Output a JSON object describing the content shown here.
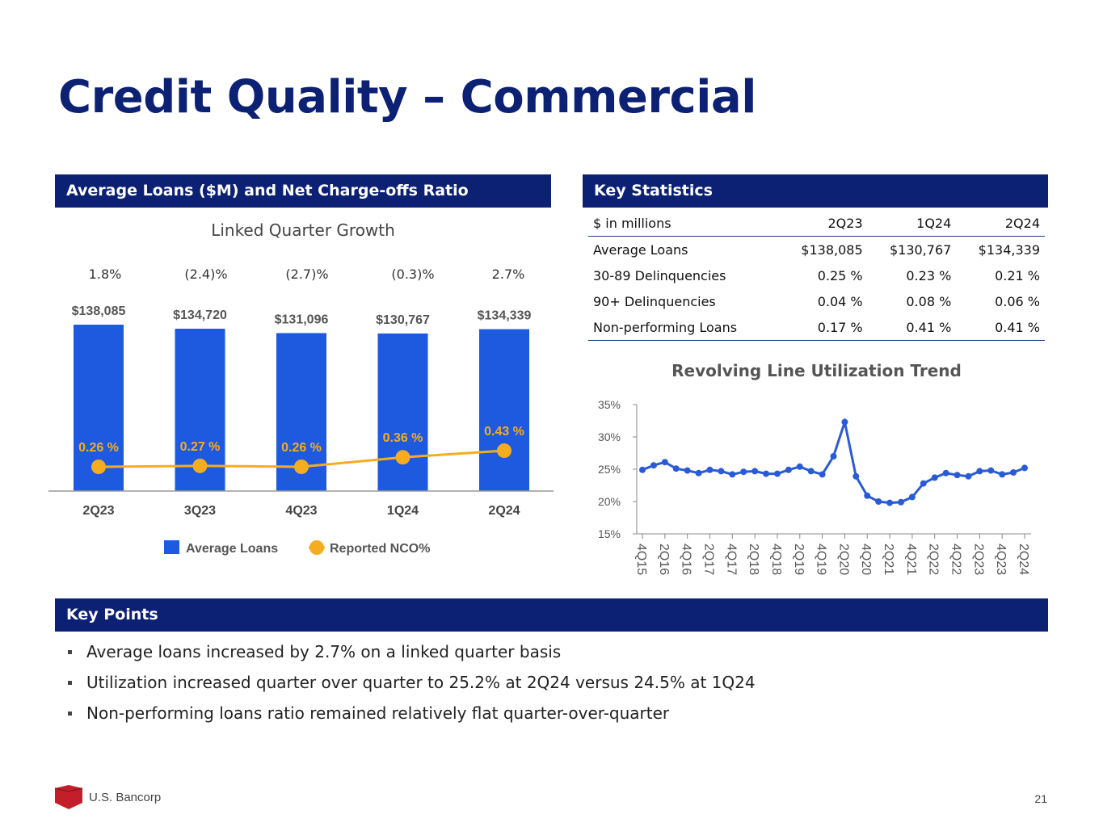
{
  "title": "Credit Quality – Commercial",
  "sections": {
    "loans_header": "Average Loans ($M) and Net Charge-offs Ratio",
    "stats_header": "Key Statistics",
    "points_header": "Key Points"
  },
  "loans_chart": {
    "subtitle": "Linked Quarter Growth",
    "growth": [
      "1.8%",
      "(2.4)%",
      "(2.7)%",
      "(0.3)%",
      "2.7%"
    ],
    "legend": {
      "bars": "Average Loans",
      "line": "Reported NCO%"
    },
    "colors": {
      "bar": "#1e5adf",
      "line": "#f5ad1f"
    }
  },
  "chart_data": [
    {
      "type": "bar",
      "title": "Average Loans ($M) and Net Charge-offs Ratio",
      "categories": [
        "2Q23",
        "3Q23",
        "4Q23",
        "1Q24",
        "2Q24"
      ],
      "series": [
        {
          "name": "Average Loans",
          "values": [
            138085,
            134720,
            131096,
            130767,
            134339
          ],
          "labels": [
            "$138,085",
            "$134,720",
            "$131,096",
            "$130,767",
            "$134,339"
          ]
        },
        {
          "name": "Reported NCO%",
          "type": "line",
          "values": [
            0.26,
            0.27,
            0.26,
            0.36,
            0.43
          ],
          "labels": [
            "0.26 %",
            "0.27 %",
            "0.26 %",
            "0.36 %",
            "0.43 %"
          ]
        }
      ]
    },
    {
      "type": "line",
      "title": "Revolving Line Utilization Trend",
      "x": [
        "4Q15",
        "1Q16",
        "2Q16",
        "3Q16",
        "4Q16",
        "1Q17",
        "2Q17",
        "3Q17",
        "4Q17",
        "1Q18",
        "2Q18",
        "3Q18",
        "4Q18",
        "1Q19",
        "2Q19",
        "3Q19",
        "4Q19",
        "1Q20",
        "2Q20",
        "3Q20",
        "4Q20",
        "1Q21",
        "2Q21",
        "3Q21",
        "4Q21",
        "1Q22",
        "2Q22",
        "3Q22",
        "4Q22",
        "1Q23",
        "2Q23",
        "3Q23",
        "4Q23",
        "1Q24",
        "2Q24"
      ],
      "xticklabels": [
        "4Q15",
        "2Q16",
        "4Q16",
        "2Q17",
        "4Q17",
        "2Q18",
        "4Q18",
        "2Q19",
        "4Q19",
        "2Q20",
        "4Q20",
        "2Q21",
        "4Q21",
        "2Q22",
        "4Q22",
        "2Q23",
        "4Q23",
        "2Q24"
      ],
      "values": [
        24.9,
        25.6,
        26.1,
        25.1,
        24.8,
        24.4,
        24.9,
        24.7,
        24.2,
        24.6,
        24.7,
        24.3,
        24.3,
        24.9,
        25.4,
        24.7,
        24.2,
        27.0,
        32.3,
        23.9,
        20.9,
        20.0,
        19.8,
        19.9,
        20.7,
        22.8,
        23.7,
        24.4,
        24.1,
        23.9,
        24.7,
        24.8,
        24.2,
        24.5,
        25.2
      ],
      "ylim": [
        15,
        35
      ],
      "yticks": [
        "15%",
        "20%",
        "25%",
        "30%",
        "35%"
      ],
      "color": "#2a5bd7"
    }
  ],
  "key_stats": {
    "headers": [
      "$ in millions",
      "2Q23",
      "1Q24",
      "2Q24"
    ],
    "rows": [
      [
        "Average Loans",
        "$138,085",
        "$130,767",
        "$134,339"
      ],
      [
        "30-89 Delinquencies",
        "0.25 %",
        "0.23 %",
        "0.21 %"
      ],
      [
        "90+ Delinquencies",
        "0.04 %",
        "0.08 %",
        "0.06 %"
      ],
      [
        "Non-performing Loans",
        "0.17 %",
        "0.41 %",
        "0.41 %"
      ]
    ]
  },
  "key_points": [
    "Average loans increased by 2.7% on a linked quarter basis",
    "Utilization increased quarter over quarter to 25.2% at 2Q24 versus 24.5% at 1Q24",
    "Non-performing loans ratio remained relatively flat quarter-over-quarter"
  ],
  "footer": {
    "company": "U.S. Bancorp",
    "page": "21"
  }
}
